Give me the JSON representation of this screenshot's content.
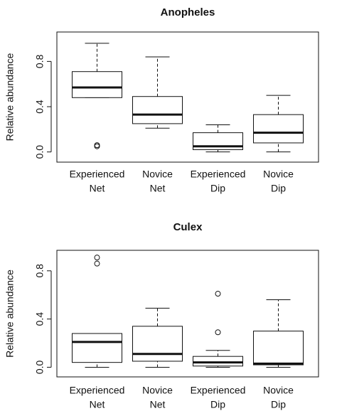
{
  "chart_data": [
    {
      "type": "box",
      "title": "Anopheles",
      "y_label": "Relative abundance",
      "categories": [
        [
          "Experienced",
          "Net"
        ],
        [
          "Novice",
          "Net"
        ],
        [
          "Experienced",
          "Dip"
        ],
        [
          "Novice",
          "Dip"
        ]
      ],
      "ylim": [
        -0.09,
        1.06
      ],
      "yticks": [
        0.0,
        0.4,
        0.8
      ],
      "boxes": [
        {
          "low": 0.48,
          "q1": 0.48,
          "median": 0.57,
          "q3": 0.71,
          "high": 0.96,
          "outliers": [
            0.06,
            0.05
          ]
        },
        {
          "low": 0.21,
          "q1": 0.25,
          "median": 0.33,
          "q3": 0.49,
          "high": 0.84,
          "outliers": []
        },
        {
          "low": 0.0,
          "q1": 0.02,
          "median": 0.05,
          "q3": 0.17,
          "high": 0.24,
          "outliers": []
        },
        {
          "low": 0.0,
          "q1": 0.08,
          "median": 0.17,
          "q3": 0.33,
          "high": 0.5,
          "outliers": []
        }
      ]
    },
    {
      "type": "box",
      "title": "Culex",
      "y_label": "Relative abundance",
      "categories": [
        [
          "Experienced",
          "Net"
        ],
        [
          "Novice",
          "Net"
        ],
        [
          "Experienced",
          "Dip"
        ],
        [
          "Novice",
          "Dip"
        ]
      ],
      "ylim": [
        -0.08,
        0.97
      ],
      "yticks": [
        0.0,
        0.4,
        0.8
      ],
      "boxes": [
        {
          "low": 0.0,
          "q1": 0.04,
          "median": 0.21,
          "q3": 0.28,
          "high": 0.28,
          "outliers": [
            0.91,
            0.86
          ]
        },
        {
          "low": 0.0,
          "q1": 0.05,
          "median": 0.11,
          "q3": 0.34,
          "high": 0.49,
          "outliers": []
        },
        {
          "low": 0.0,
          "q1": 0.01,
          "median": 0.04,
          "q3": 0.09,
          "high": 0.14,
          "outliers": [
            0.61,
            0.29
          ]
        },
        {
          "low": 0.0,
          "q1": 0.02,
          "median": 0.03,
          "q3": 0.3,
          "high": 0.56,
          "outliers": []
        }
      ]
    }
  ]
}
